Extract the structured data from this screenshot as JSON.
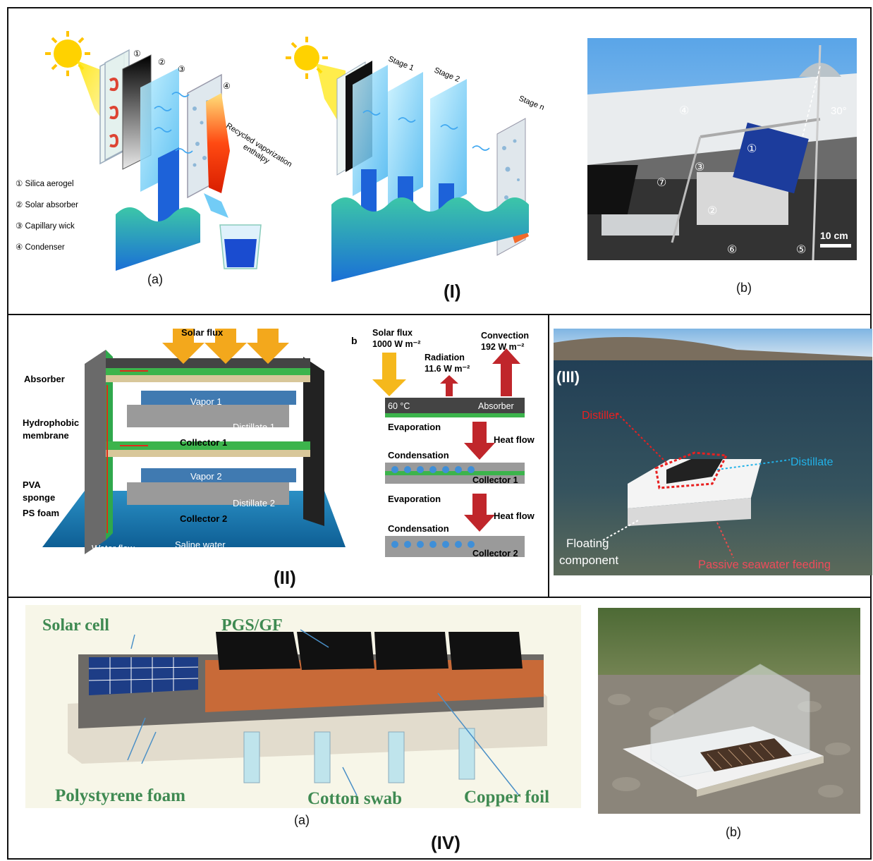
{
  "panel_I": {
    "label": "(I)",
    "a": {
      "caption": "(a)",
      "markers": [
        "①",
        "②",
        "③",
        "④"
      ],
      "legend": [
        "① Silica aerogel",
        "② Solar absorber",
        "③ Capillary wick",
        "④ Condenser"
      ],
      "recycled": "Recycled vaporization",
      "enthalpy": "enthalpy",
      "stages": [
        "Stage 1",
        "Stage 2",
        "Stage n"
      ]
    },
    "b": {
      "caption": "(b)",
      "angle": "30°",
      "scale": "10 cm",
      "markers": [
        "①",
        "②",
        "③",
        "④",
        "⑤",
        "⑥",
        "⑦"
      ]
    }
  },
  "panel_II": {
    "label": "(II)",
    "solar_flux": "Solar flux",
    "absorber": "Absorber",
    "hydrophobic": "Hydrophobic",
    "membrane": "membrane",
    "pva": "PVA",
    "sponge": "sponge",
    "ps_foam": "PS foam",
    "vapor1": "Vapor 1",
    "vapor2": "Vapor 2",
    "distillate1": "Distillate 1",
    "distillate2": "Distillate 2",
    "collector1": "Collector 1",
    "collector2": "Collector 2",
    "water_flow": "Water flow",
    "saline": "Saline water",
    "b_label": "b",
    "sf_title": "Solar flux",
    "sf_value": "1000 W m⁻²",
    "conv_title": "Convection",
    "conv_value": "192 W m⁻²",
    "rad_title": "Radiation",
    "rad_value": "11.6 W m⁻²",
    "temp": "60 °C",
    "absorber_b": "Absorber",
    "evaporation": "Evaporation",
    "condensation": "Condensation",
    "heat_flow": "Heat flow"
  },
  "panel_III": {
    "label": "(III)",
    "distiller": "Distiller",
    "distillate": "Distillate",
    "floating1": "Floating",
    "floating2": "component",
    "passive": "Passive seawater feeding"
  },
  "panel_IV": {
    "label": "(IV)",
    "a_caption": "(a)",
    "b_caption": "(b)",
    "solar_cell": "Solar cell",
    "pgs_gf": "PGS/GF",
    "polystyrene": "Polystyrene foam",
    "cotton": "Cotton swab",
    "copper": "Copper foil"
  }
}
